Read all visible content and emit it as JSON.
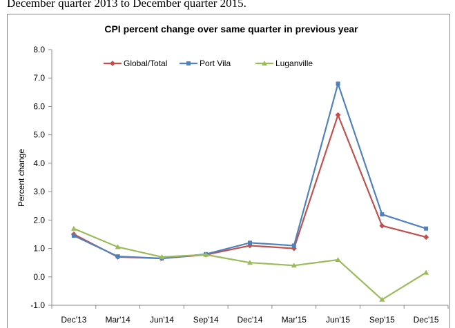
{
  "header_text": "December quarter 2013 to December quarter 2015.",
  "chart_data": {
    "type": "line",
    "title": "CPI percent change over same quarter in previous year",
    "y_label": "Percent change",
    "categories": [
      "Dec'13",
      "Mar'14",
      "Jun'14",
      "Sep'14",
      "Dec'14",
      "Mar'15",
      "Jun'15",
      "Sep'15",
      "Dec'15"
    ],
    "series": [
      {
        "name": "Global/Total",
        "color": "#c0504d",
        "marker": "diamond",
        "values": [
          1.5,
          0.7,
          0.65,
          0.78,
          1.1,
          1.0,
          5.7,
          1.8,
          1.4
        ]
      },
      {
        "name": "Port Vila",
        "color": "#4f81bd",
        "marker": "square",
        "values": [
          1.45,
          0.72,
          0.65,
          0.8,
          1.2,
          1.1,
          6.8,
          2.2,
          1.7
        ]
      },
      {
        "name": "Luganville",
        "color": "#9bbb59",
        "marker": "triangle",
        "values": [
          1.7,
          1.05,
          0.7,
          0.78,
          0.5,
          0.4,
          0.6,
          -0.8,
          0.15
        ]
      }
    ],
    "ylim": [
      -1,
      8
    ],
    "yticks": [
      {
        "value": -1,
        "label": "-1.0"
      },
      {
        "value": 0,
        "label": "0.0"
      },
      {
        "value": 1,
        "label": "1.0"
      },
      {
        "value": 2,
        "label": "2.0"
      },
      {
        "value": 3,
        "label": "3.0"
      },
      {
        "value": 4,
        "label": "4.0"
      },
      {
        "value": 5,
        "label": "5.0"
      },
      {
        "value": 6,
        "label": "6.0"
      },
      {
        "value": 7,
        "label": "7.0"
      },
      {
        "value": 8,
        "label": "8.0"
      }
    ],
    "grid": false,
    "legend": "top"
  }
}
